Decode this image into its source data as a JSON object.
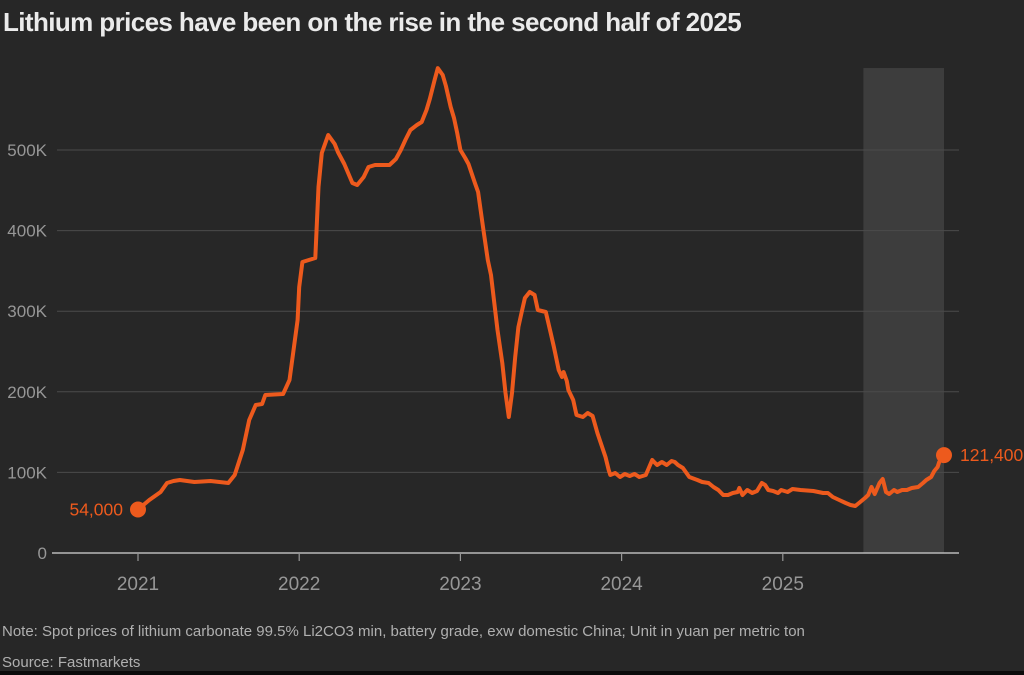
{
  "title": "Lithium prices have been on the rise in the second half of 2025",
  "footer": {
    "note": "Note: Spot prices of lithium carbonate 99.5% Li2CO3 min, battery grade, exw domestic China; Unit in yuan per metric ton",
    "source": "Source: Fastmarkets"
  },
  "colors": {
    "background": "#272727",
    "line": "#ed5a1d",
    "highlight_band": "#3d3d3d",
    "grid": "#4b4b4b",
    "axis": "#b8b8b8",
    "tick_text": "#979797",
    "title_text": "#ebebeb",
    "note_text": "#b0b0b0"
  },
  "chart_data": {
    "type": "line",
    "title": "Lithium prices have been on the rise in the second half of 2025",
    "xlabel": "",
    "ylabel": "",
    "unit": "yuan per metric ton",
    "grid": true,
    "legend": "none",
    "ylim": [
      0,
      601700
    ],
    "xlim": [
      2020.5,
      2026.09
    ],
    "yticks": [
      {
        "v": 0,
        "label": "0"
      },
      {
        "v": 100000,
        "label": "100K"
      },
      {
        "v": 200000,
        "label": "200K"
      },
      {
        "v": 300000,
        "label": "300K"
      },
      {
        "v": 400000,
        "label": "400K"
      },
      {
        "v": 500000,
        "label": "500K"
      }
    ],
    "xticks": [
      {
        "v": 2021,
        "label": "2021"
      },
      {
        "v": 2022,
        "label": "2022"
      },
      {
        "v": 2023,
        "label": "2023"
      },
      {
        "v": 2024,
        "label": "2024"
      },
      {
        "v": 2025,
        "label": "2025"
      }
    ],
    "highlight_region": {
      "x_start": 2025.5,
      "x_end": 2026.0,
      "meaning": "second half of 2025"
    },
    "annotations": {
      "start_label": "54,000",
      "end_label": "121,400"
    },
    "series": [
      {
        "name": "Lithium carbonate 99.5% spot price, China",
        "points": [
          [
            2021.0,
            54000
          ],
          [
            2021.07,
            65800
          ],
          [
            2021.14,
            75700
          ],
          [
            2021.18,
            86800
          ],
          [
            2021.22,
            89300
          ],
          [
            2021.26,
            90600
          ],
          [
            2021.35,
            88100
          ],
          [
            2021.45,
            89300
          ],
          [
            2021.56,
            86800
          ],
          [
            2021.6,
            96800
          ],
          [
            2021.65,
            127800
          ],
          [
            2021.69,
            165000
          ],
          [
            2021.73,
            183600
          ],
          [
            2021.77,
            184900
          ],
          [
            2021.79,
            196000
          ],
          [
            2021.9,
            197300
          ],
          [
            2021.94,
            214600
          ],
          [
            2021.99,
            289100
          ],
          [
            2022.0,
            330000
          ],
          [
            2022.02,
            361000
          ],
          [
            2022.08,
            364800
          ],
          [
            2022.1,
            366000
          ],
          [
            2022.12,
            454100
          ],
          [
            2022.14,
            496300
          ],
          [
            2022.18,
            518600
          ],
          [
            2022.22,
            507400
          ],
          [
            2022.24,
            497500
          ],
          [
            2022.28,
            482600
          ],
          [
            2022.33,
            459100
          ],
          [
            2022.36,
            456600
          ],
          [
            2022.4,
            466500
          ],
          [
            2022.43,
            478900
          ],
          [
            2022.47,
            481400
          ],
          [
            2022.56,
            481400
          ],
          [
            2022.6,
            488800
          ],
          [
            2022.63,
            500000
          ],
          [
            2022.66,
            513000
          ],
          [
            2022.69,
            524800
          ],
          [
            2022.73,
            531000
          ],
          [
            2022.76,
            534700
          ],
          [
            2022.79,
            549600
          ],
          [
            2022.81,
            563300
          ],
          [
            2022.84,
            586900
          ],
          [
            2022.86,
            601500
          ],
          [
            2022.89,
            593100
          ],
          [
            2022.91,
            579400
          ],
          [
            2022.94,
            553400
          ],
          [
            2022.96,
            539700
          ],
          [
            2022.98,
            521100
          ],
          [
            2023.0,
            500000
          ],
          [
            2023.03,
            490100
          ],
          [
            2023.05,
            482600
          ],
          [
            2023.09,
            459100
          ],
          [
            2023.11,
            447900
          ],
          [
            2023.14,
            404500
          ],
          [
            2023.17,
            363500
          ],
          [
            2023.19,
            344900
          ],
          [
            2023.21,
            310200
          ],
          [
            2023.23,
            276700
          ],
          [
            2023.26,
            235700
          ],
          [
            2023.28,
            198500
          ],
          [
            2023.3,
            168700
          ],
          [
            2023.32,
            198500
          ],
          [
            2023.34,
            243200
          ],
          [
            2023.36,
            280400
          ],
          [
            2023.38,
            299000
          ],
          [
            2023.4,
            316400
          ],
          [
            2023.43,
            323800
          ],
          [
            2023.46,
            320100
          ],
          [
            2023.48,
            301500
          ],
          [
            2023.53,
            299000
          ],
          [
            2023.56,
            273000
          ],
          [
            2023.58,
            255600
          ],
          [
            2023.61,
            227000
          ],
          [
            2023.63,
            218400
          ],
          [
            2023.64,
            224600
          ],
          [
            2023.66,
            213400
          ],
          [
            2023.67,
            202200
          ],
          [
            2023.7,
            189800
          ],
          [
            2023.72,
            171200
          ],
          [
            2023.76,
            168700
          ],
          [
            2023.79,
            173700
          ],
          [
            2023.82,
            170000
          ],
          [
            2023.85,
            148900
          ],
          [
            2023.9,
            119100
          ],
          [
            2023.92,
            103000
          ],
          [
            2023.93,
            96800
          ],
          [
            2023.96,
            99300
          ],
          [
            2023.99,
            94300
          ],
          [
            2024.02,
            98000
          ],
          [
            2024.05,
            95500
          ],
          [
            2024.08,
            98000
          ],
          [
            2024.11,
            94300
          ],
          [
            2024.15,
            96800
          ],
          [
            2024.19,
            115400
          ],
          [
            2024.22,
            109200
          ],
          [
            2024.25,
            112900
          ],
          [
            2024.28,
            109200
          ],
          [
            2024.31,
            114100
          ],
          [
            2024.33,
            112900
          ],
          [
            2024.35,
            109200
          ],
          [
            2024.38,
            105500
          ],
          [
            2024.42,
            94300
          ],
          [
            2024.47,
            90600
          ],
          [
            2024.5,
            88100
          ],
          [
            2024.54,
            86800
          ],
          [
            2024.57,
            81900
          ],
          [
            2024.6,
            78200
          ],
          [
            2024.63,
            72000
          ],
          [
            2024.66,
            72000
          ],
          [
            2024.69,
            74400
          ],
          [
            2024.72,
            75700
          ],
          [
            2024.73,
            80600
          ],
          [
            2024.75,
            72000
          ],
          [
            2024.78,
            78200
          ],
          [
            2024.81,
            74400
          ],
          [
            2024.84,
            76900
          ],
          [
            2024.87,
            86800
          ],
          [
            2024.89,
            84400
          ],
          [
            2024.91,
            78200
          ],
          [
            2024.94,
            76900
          ],
          [
            2024.97,
            74400
          ],
          [
            2024.99,
            78200
          ],
          [
            2025.03,
            75700
          ],
          [
            2025.06,
            79400
          ],
          [
            2025.11,
            78200
          ],
          [
            2025.19,
            76900
          ],
          [
            2025.22,
            75700
          ],
          [
            2025.25,
            74400
          ],
          [
            2025.28,
            74400
          ],
          [
            2025.31,
            69500
          ],
          [
            2025.35,
            65800
          ],
          [
            2025.39,
            62000
          ],
          [
            2025.42,
            59600
          ],
          [
            2025.45,
            58300
          ],
          [
            2025.48,
            63300
          ],
          [
            2025.51,
            68200
          ],
          [
            2025.53,
            72000
          ],
          [
            2025.55,
            81900
          ],
          [
            2025.57,
            73200
          ],
          [
            2025.6,
            86800
          ],
          [
            2025.62,
            91800
          ],
          [
            2025.64,
            75700
          ],
          [
            2025.66,
            73200
          ],
          [
            2025.69,
            78200
          ],
          [
            2025.71,
            75700
          ],
          [
            2025.74,
            78200
          ],
          [
            2025.77,
            78200
          ],
          [
            2025.8,
            80600
          ],
          [
            2025.84,
            81900
          ],
          [
            2025.87,
            86800
          ],
          [
            2025.89,
            90600
          ],
          [
            2025.92,
            94300
          ],
          [
            2025.94,
            101700
          ],
          [
            2025.96,
            106700
          ],
          [
            2025.97,
            112900
          ],
          [
            2026.0,
            121400
          ]
        ]
      }
    ]
  }
}
